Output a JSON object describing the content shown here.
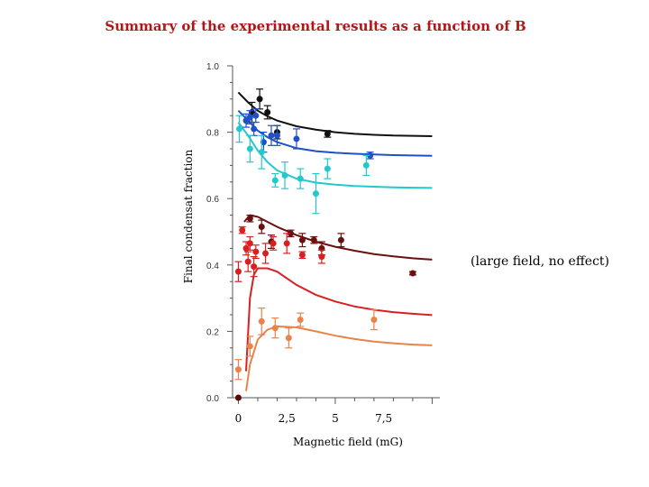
{
  "title": "Summary of the experimental results as a function of B",
  "chart_data": {
    "type": "scatter",
    "title": "Summary of the experimental results as a function of B",
    "xlabel": "Magnetic field (mG)",
    "ylabel": "Final condensat fraction",
    "xlim": [
      -0.3,
      10.4
    ],
    "ylim": [
      0,
      1.0
    ],
    "yticks": [
      0,
      0.2,
      0.4,
      0.6,
      0.8,
      1.0
    ],
    "ytick_labels": [
      "0.0",
      "0.2",
      "0.4",
      "0.6",
      "0.8",
      "1.0"
    ],
    "xticks": [
      0,
      2.5,
      5,
      7.5
    ],
    "xtick_labels": [
      "0",
      "2,5",
      "5",
      "7,5"
    ],
    "annotation": "(large field, no effect)",
    "series": [
      {
        "name": "black",
        "color": "#111111",
        "points": [
          {
            "x": 1.1,
            "y": 0.9,
            "err": 0.03
          },
          {
            "x": 0.7,
            "y": 0.86,
            "err": 0.03
          },
          {
            "x": 1.5,
            "y": 0.86,
            "err": 0.02
          },
          {
            "x": 2.0,
            "y": 0.8,
            "err": 0.02
          },
          {
            "x": 4.6,
            "y": 0.795,
            "err": 0.01
          }
        ],
        "curve": [
          [
            0.0,
            0.92
          ],
          [
            0.5,
            0.89
          ],
          [
            1.0,
            0.865
          ],
          [
            1.5,
            0.848
          ],
          [
            2.0,
            0.835
          ],
          [
            3.0,
            0.818
          ],
          [
            4.0,
            0.808
          ],
          [
            5.0,
            0.8
          ],
          [
            6.0,
            0.795
          ],
          [
            7.0,
            0.792
          ],
          [
            8.0,
            0.79
          ],
          [
            9.0,
            0.789
          ],
          [
            10.0,
            0.788
          ]
        ]
      },
      {
        "name": "blue",
        "color": "#1f50c8",
        "points": [
          {
            "x": 0.4,
            "y": 0.835,
            "err": 0.02
          },
          {
            "x": 0.6,
            "y": 0.845,
            "err": 0.02
          },
          {
            "x": 0.9,
            "y": 0.85,
            "err": 0.02
          },
          {
            "x": 0.8,
            "y": 0.81,
            "err": 0.02
          },
          {
            "x": 1.3,
            "y": 0.77,
            "err": 0.03
          },
          {
            "x": 1.7,
            "y": 0.79,
            "err": 0.03
          },
          {
            "x": 2.0,
            "y": 0.79,
            "err": 0.03
          },
          {
            "x": 3.0,
            "y": 0.78,
            "err": 0.03
          },
          {
            "x": 6.8,
            "y": 0.73,
            "err": 0.01
          }
        ],
        "curve": [
          [
            0.0,
            0.865
          ],
          [
            0.5,
            0.835
          ],
          [
            1.0,
            0.805
          ],
          [
            1.5,
            0.785
          ],
          [
            2.0,
            0.77
          ],
          [
            3.0,
            0.752
          ],
          [
            4.0,
            0.743
          ],
          [
            5.0,
            0.738
          ],
          [
            6.0,
            0.735
          ],
          [
            7.0,
            0.733
          ],
          [
            8.0,
            0.731
          ],
          [
            9.0,
            0.73
          ],
          [
            10.0,
            0.729
          ]
        ]
      },
      {
        "name": "cyan",
        "color": "#22c8cc",
        "points": [
          {
            "x": 0.05,
            "y": 0.81,
            "err": 0.04
          },
          {
            "x": 0.6,
            "y": 0.75,
            "err": 0.04
          },
          {
            "x": 1.2,
            "y": 0.74,
            "err": 0.05
          },
          {
            "x": 1.9,
            "y": 0.655,
            "err": 0.02
          },
          {
            "x": 2.4,
            "y": 0.67,
            "err": 0.04
          },
          {
            "x": 3.2,
            "y": 0.66,
            "err": 0.03
          },
          {
            "x": 4.0,
            "y": 0.615,
            "err": 0.06
          },
          {
            "x": 4.6,
            "y": 0.69,
            "err": 0.03
          },
          {
            "x": 6.6,
            "y": 0.7,
            "err": 0.03
          }
        ],
        "curve": [
          [
            0.0,
            0.83
          ],
          [
            0.5,
            0.79
          ],
          [
            1.0,
            0.745
          ],
          [
            1.5,
            0.71
          ],
          [
            2.0,
            0.685
          ],
          [
            3.0,
            0.66
          ],
          [
            4.0,
            0.648
          ],
          [
            5.0,
            0.642
          ],
          [
            6.0,
            0.638
          ],
          [
            7.0,
            0.636
          ],
          [
            8.0,
            0.634
          ],
          [
            9.0,
            0.633
          ],
          [
            10.0,
            0.632
          ]
        ]
      },
      {
        "name": "dark red",
        "color": "#6b0f0f",
        "points": [
          {
            "x": 0.6,
            "y": 0.54,
            "err": 0.01
          },
          {
            "x": 1.2,
            "y": 0.515,
            "err": 0.02
          },
          {
            "x": 2.7,
            "y": 0.495,
            "err": 0.01
          },
          {
            "x": 3.3,
            "y": 0.475,
            "err": 0.02
          },
          {
            "x": 3.9,
            "y": 0.475,
            "err": 0.01
          },
          {
            "x": 4.3,
            "y": 0.45,
            "err": 0.02
          },
          {
            "x": 5.3,
            "y": 0.475,
            "err": 0.02
          },
          {
            "x": 1.7,
            "y": 0.47,
            "err": 0.02
          },
          {
            "x": 9.0,
            "y": 0.375,
            "err": 0.005
          }
        ],
        "curve": [
          [
            0.3,
            0.53
          ],
          [
            0.6,
            0.55
          ],
          [
            1.0,
            0.545
          ],
          [
            1.5,
            0.53
          ],
          [
            2.0,
            0.515
          ],
          [
            3.0,
            0.49
          ],
          [
            4.0,
            0.47
          ],
          [
            5.0,
            0.455
          ],
          [
            6.0,
            0.443
          ],
          [
            7.0,
            0.433
          ],
          [
            8.0,
            0.426
          ],
          [
            9.0,
            0.42
          ],
          [
            10.0,
            0.416
          ]
        ]
      },
      {
        "name": "red",
        "color": "#d82020",
        "points": [
          {
            "x": 0.0,
            "y": 0.38,
            "err": 0.03
          },
          {
            "x": 0.2,
            "y": 0.505,
            "err": 0.01
          },
          {
            "x": 0.4,
            "y": 0.45,
            "err": 0.02
          },
          {
            "x": 0.5,
            "y": 0.41,
            "err": 0.03
          },
          {
            "x": 0.6,
            "y": 0.465,
            "err": 0.02
          },
          {
            "x": 0.8,
            "y": 0.395,
            "err": 0.03
          },
          {
            "x": 0.9,
            "y": 0.44,
            "err": 0.02
          },
          {
            "x": 1.4,
            "y": 0.435,
            "err": 0.03
          },
          {
            "x": 1.8,
            "y": 0.465,
            "err": 0.02
          },
          {
            "x": 2.5,
            "y": 0.465,
            "err": 0.03
          },
          {
            "x": 3.3,
            "y": 0.43,
            "err": 0.01
          },
          {
            "x": 4.3,
            "y": 0.425,
            "err": 0.02
          }
        ],
        "curve": [
          [
            0.4,
            0.08
          ],
          [
            0.6,
            0.3
          ],
          [
            0.8,
            0.37
          ],
          [
            1.0,
            0.39
          ],
          [
            1.5,
            0.39
          ],
          [
            2.0,
            0.38
          ],
          [
            3.0,
            0.34
          ],
          [
            4.0,
            0.31
          ],
          [
            5.0,
            0.29
          ],
          [
            6.0,
            0.275
          ],
          [
            7.0,
            0.265
          ],
          [
            8.0,
            0.258
          ],
          [
            9.0,
            0.253
          ],
          [
            10.0,
            0.249
          ]
        ]
      },
      {
        "name": "orange",
        "color": "#e8834a",
        "points": [
          {
            "x": 0.0,
            "y": 0.085,
            "err": 0.03
          },
          {
            "x": 0.6,
            "y": 0.155,
            "err": 0.03
          },
          {
            "x": 1.2,
            "y": 0.23,
            "err": 0.04
          },
          {
            "x": 1.9,
            "y": 0.21,
            "err": 0.03
          },
          {
            "x": 2.6,
            "y": 0.18,
            "err": 0.03
          },
          {
            "x": 3.2,
            "y": 0.235,
            "err": 0.02
          },
          {
            "x": 7.0,
            "y": 0.235,
            "err": 0.03
          }
        ],
        "curve": [
          [
            0.4,
            0.02
          ],
          [
            0.6,
            0.1
          ],
          [
            1.0,
            0.175
          ],
          [
            1.5,
            0.205
          ],
          [
            2.0,
            0.215
          ],
          [
            3.0,
            0.212
          ],
          [
            4.0,
            0.2
          ],
          [
            5.0,
            0.187
          ],
          [
            6.0,
            0.177
          ],
          [
            7.0,
            0.169
          ],
          [
            8.0,
            0.164
          ],
          [
            9.0,
            0.16
          ],
          [
            10.0,
            0.158
          ]
        ]
      }
    ]
  }
}
